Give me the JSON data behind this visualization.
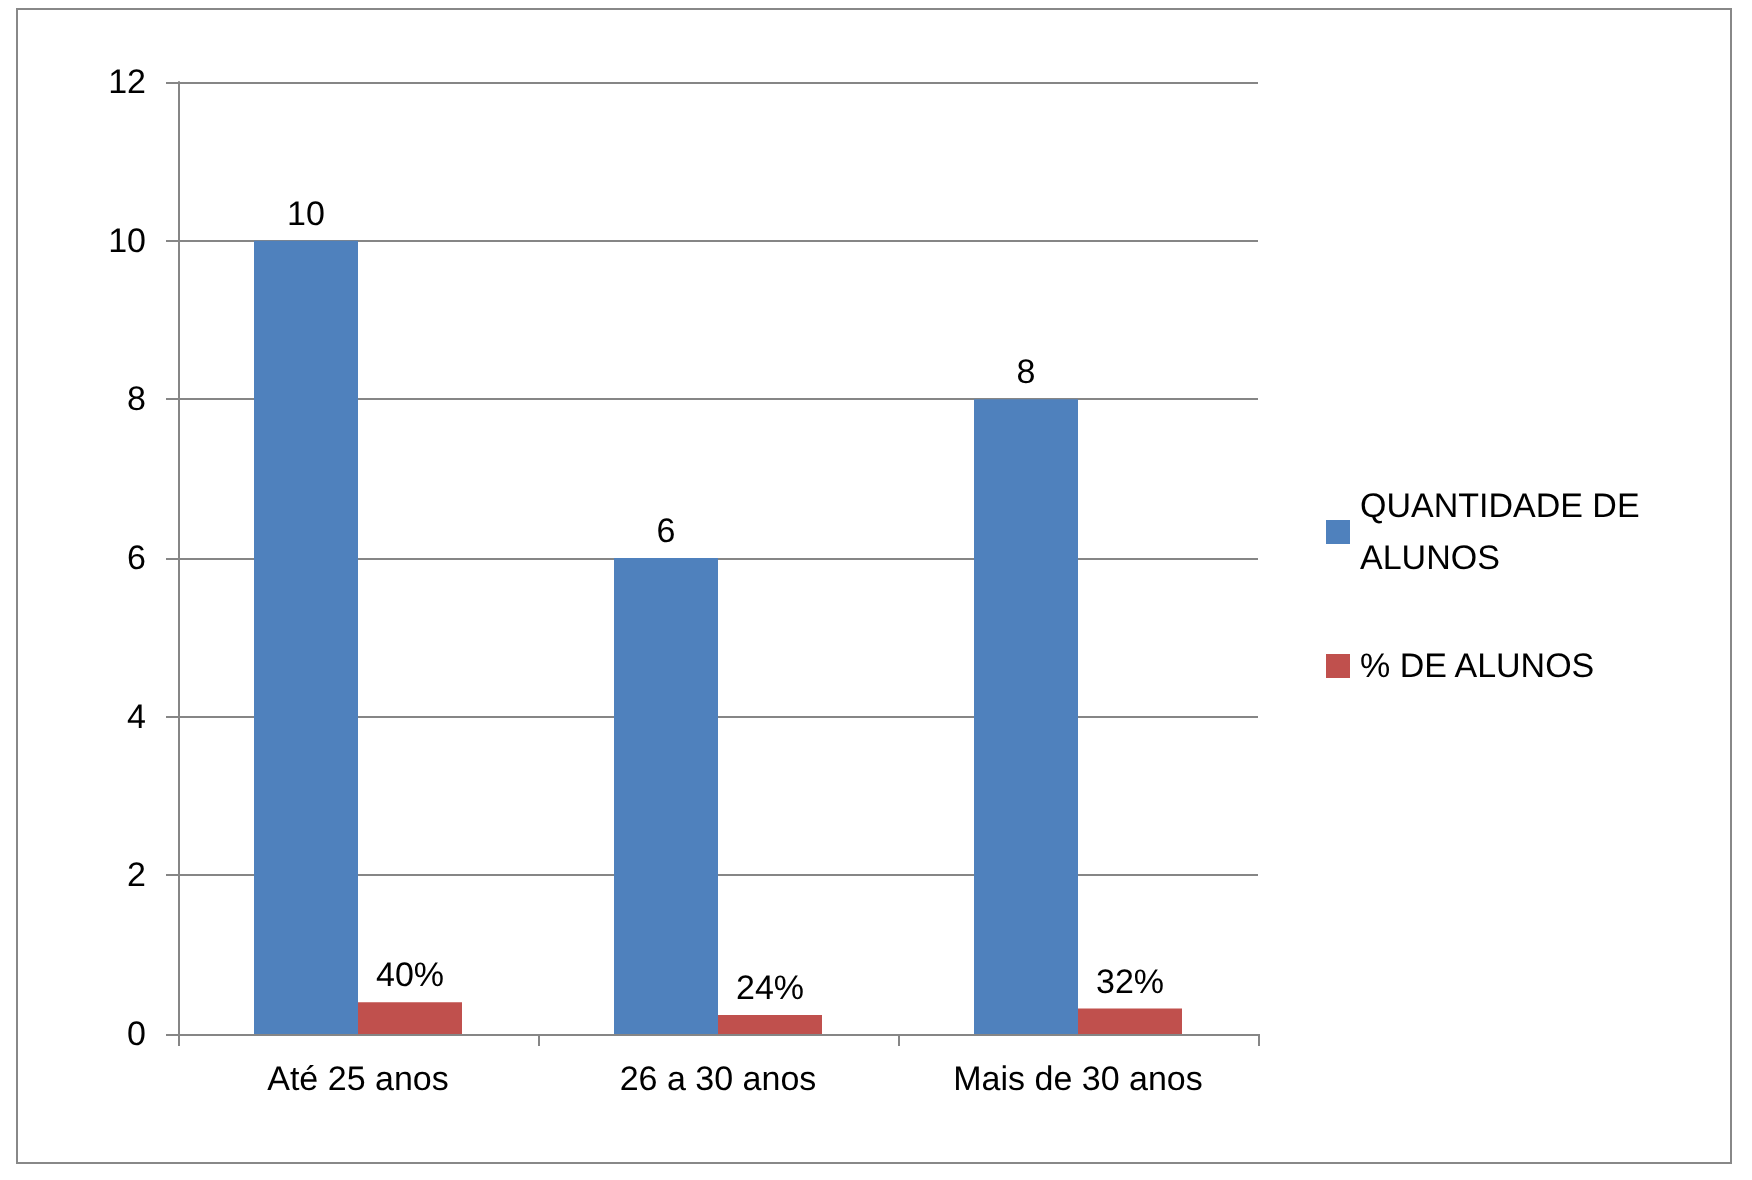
{
  "chart_data": {
    "type": "bar",
    "categories": [
      "Até 25 anos",
      "26 a 30 anos",
      "Mais de 30 anos"
    ],
    "series": [
      {
        "name": "QUANTIDADE DE ALUNOS",
        "color": "#4f81bd",
        "values": [
          10,
          6,
          8
        ],
        "value_labels": [
          "10",
          "6",
          "8"
        ]
      },
      {
        "name": "% DE ALUNOS",
        "color": "#c0504d",
        "values": [
          0.4,
          0.24,
          0.32
        ],
        "value_labels": [
          "40%",
          "24%",
          "32%"
        ]
      }
    ],
    "ylim": [
      0,
      12
    ],
    "yticks": [
      0,
      2,
      4,
      6,
      8,
      10,
      12
    ],
    "grid": "y",
    "legend": "right"
  }
}
